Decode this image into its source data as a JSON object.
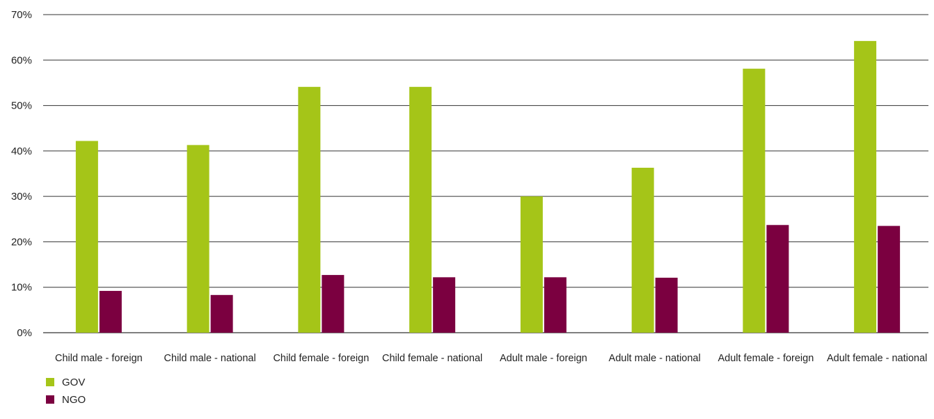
{
  "chart_data": {
    "type": "bar",
    "title": "",
    "xlabel": "",
    "ylabel": "",
    "ylim": [
      0,
      70
    ],
    "y_ticks": [
      0,
      10,
      20,
      30,
      40,
      50,
      60,
      70
    ],
    "y_tick_labels": [
      "0%",
      "10%",
      "20%",
      "30%",
      "40%",
      "50%",
      "60%",
      "70%"
    ],
    "grid": true,
    "legend_position": "bottom-left",
    "categories": [
      "Child male - foreign",
      "Child male - national",
      "Child female - foreign",
      "Child female - national",
      "Adult male - foreign",
      "Adult male - national",
      "Adult female - foreign",
      "Adult female - national"
    ],
    "series": [
      {
        "name": "GOV",
        "color": "#a5c518",
        "values": [
          42.2,
          41.3,
          54.1,
          54.1,
          30.0,
          36.3,
          58.1,
          64.2
        ]
      },
      {
        "name": "NGO",
        "color": "#7b0040",
        "values": [
          9.2,
          8.3,
          12.7,
          12.2,
          12.2,
          12.1,
          23.7,
          23.5
        ]
      }
    ]
  }
}
